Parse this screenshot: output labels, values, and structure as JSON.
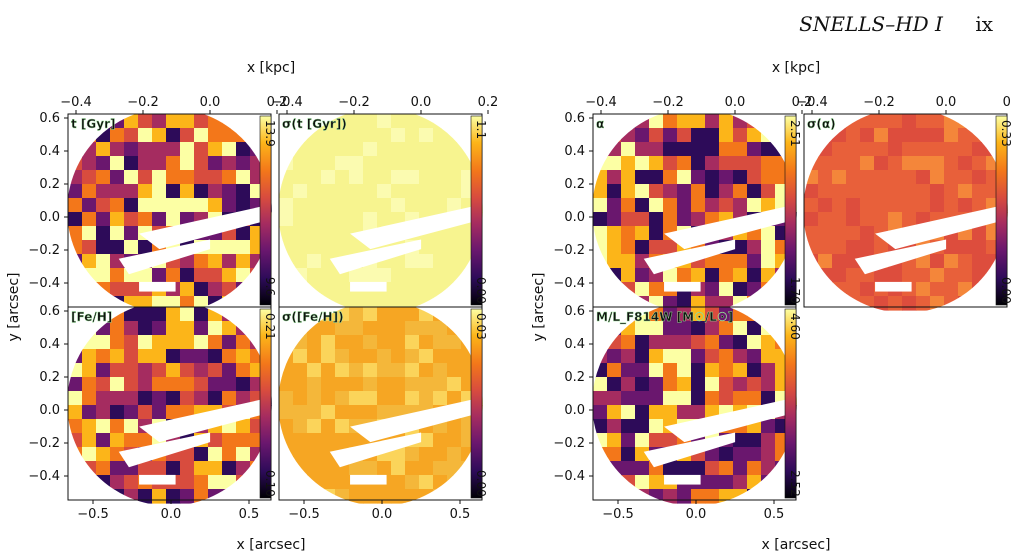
{
  "header": {
    "title": "SNELLS–HD I",
    "page": "ix"
  },
  "figure": {
    "left": {
      "top_axis_label": "x [kpc]",
      "bottom_axis_label": "x [arcsec]",
      "y_axis_label": "y [arcsec]",
      "top_ticks": [
        "−0.4",
        "−0.2",
        "0.0",
        "0.2"
      ],
      "bottom_ticks": [
        "−0.5",
        "0.0",
        "0.5"
      ],
      "y_ticks": [
        "0.6",
        "0.4",
        "0.2",
        "0.0",
        "−0.2",
        "−0.4"
      ],
      "panels": [
        {
          "label": "t [Gyr]",
          "cmax": "13.9",
          "cmin": "9.6"
        },
        {
          "label": "σ(t [Gyr])",
          "cmax": "1.1",
          "cmin": "0.00"
        },
        {
          "label": "[Fe/H]",
          "cmax": "0.21",
          "cmin": "0.10"
        },
        {
          "label": "σ([Fe/H])",
          "cmax": "0.03",
          "cmin": "0.00"
        }
      ]
    },
    "right": {
      "top_axis_label": "x [kpc]",
      "bottom_axis_label": "x [arcsec]",
      "y_axis_label": "y [arcsec]",
      "top_ticks": [
        "−0.4",
        "−0.2",
        "0.0",
        "0.2"
      ],
      "bottom_ticks": [
        "−0.5",
        "0.0",
        "0.5"
      ],
      "y_ticks": [
        "0.6",
        "0.4",
        "0.2",
        "0.0",
        "−0.2",
        "−0.4"
      ],
      "panels": [
        {
          "label": "α",
          "cmax": "2.51",
          "cmin": "1.70"
        },
        {
          "label": "σ(α)",
          "cmax": "0.33",
          "cmin": "0.00"
        },
        {
          "label": "M/L_F814W [M☉/L☉]",
          "cmax": "4.60",
          "cmin": "2.52"
        }
      ]
    }
  },
  "colors": {
    "inferno": [
      "#000004",
      "#2d0b59",
      "#6a176e",
      "#a52c60",
      "#d84c3e",
      "#f3771a",
      "#fcb519",
      "#fcffa4"
    ]
  }
}
